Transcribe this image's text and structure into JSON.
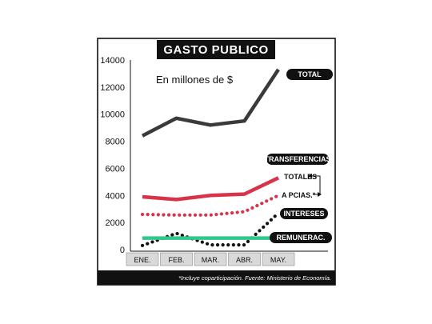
{
  "chart_data": {
    "type": "line",
    "title": "GASTO PUBLICO",
    "subtitle": "En millones de $",
    "categories": [
      "ENE.",
      "FEB.",
      "MAR.",
      "ABR.",
      "MAY."
    ],
    "ylim": [
      0,
      14000
    ],
    "yticks": [
      "0",
      "2000",
      "4000",
      "6000",
      "8000",
      "10000",
      "12000",
      "14000"
    ],
    "grid": false,
    "series": [
      {
        "name": "TOTAL",
        "values": [
          8400,
          9700,
          9200,
          9500,
          13300
        ],
        "color": "#3a3a3a",
        "style": "solid"
      },
      {
        "name": "TOTALES",
        "values": [
          3900,
          3700,
          4000,
          4100,
          5300
        ],
        "color": "#d8334a",
        "style": "solid"
      },
      {
        "name": "A PCIAS.*",
        "values": [
          2600,
          2550,
          2550,
          2800,
          4000
        ],
        "color": "#d8334a",
        "style": "dotted"
      },
      {
        "name": "INTERESES",
        "values": [
          300,
          1200,
          350,
          350,
          2700
        ],
        "color": "#111111",
        "style": "dotted"
      },
      {
        "name": "REMUNERAC.",
        "values": [
          850,
          850,
          850,
          850,
          850
        ],
        "color": "#2ec98a",
        "style": "solid"
      }
    ],
    "group_label": "TRANSFERENCIAS",
    "source": "*Incluye coparticipación. Fuente: Ministerio de Economía."
  }
}
